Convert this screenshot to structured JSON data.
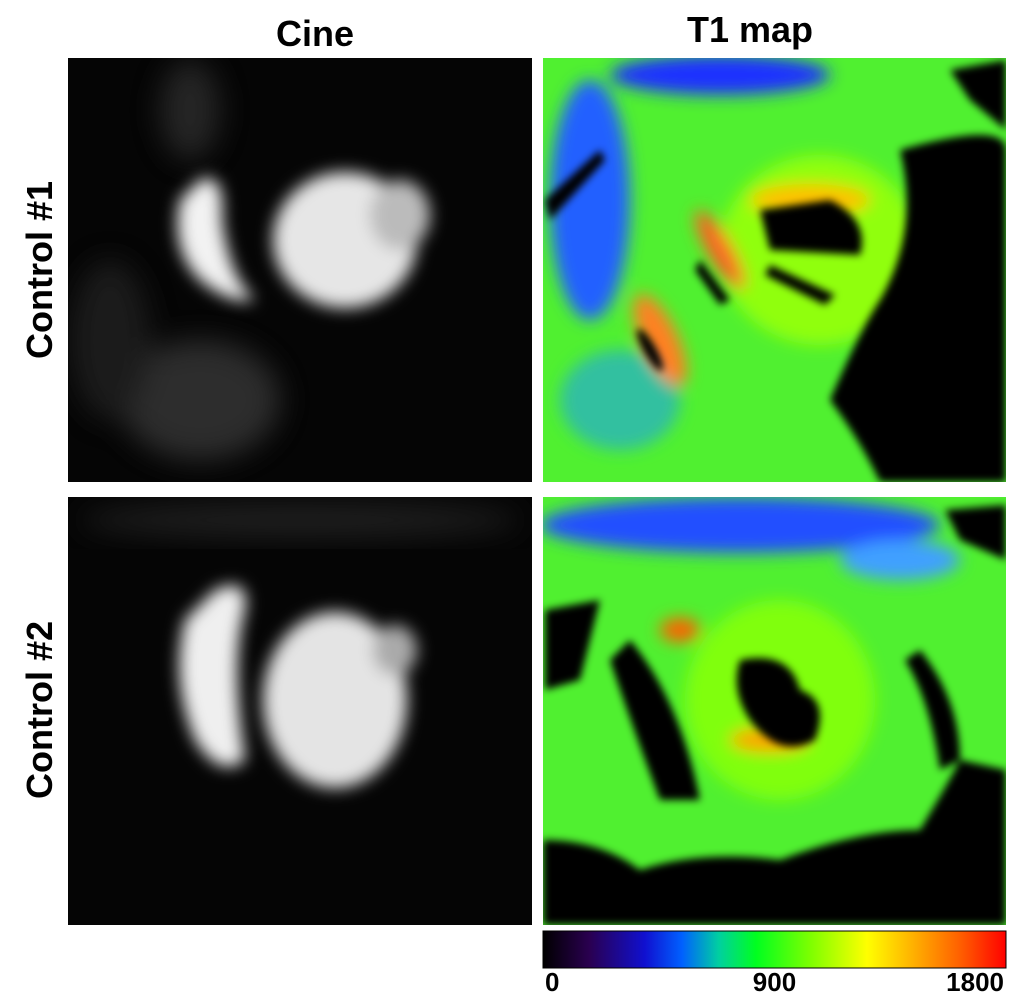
{
  "header": {
    "columns": [
      "Cine",
      "T1 map"
    ]
  },
  "rows": [
    {
      "label": "Control #1"
    },
    {
      "label": "Control #2"
    }
  ],
  "colorbar": {
    "range": [
      0,
      1800
    ],
    "ticks": [
      0,
      900,
      1800
    ]
  }
}
